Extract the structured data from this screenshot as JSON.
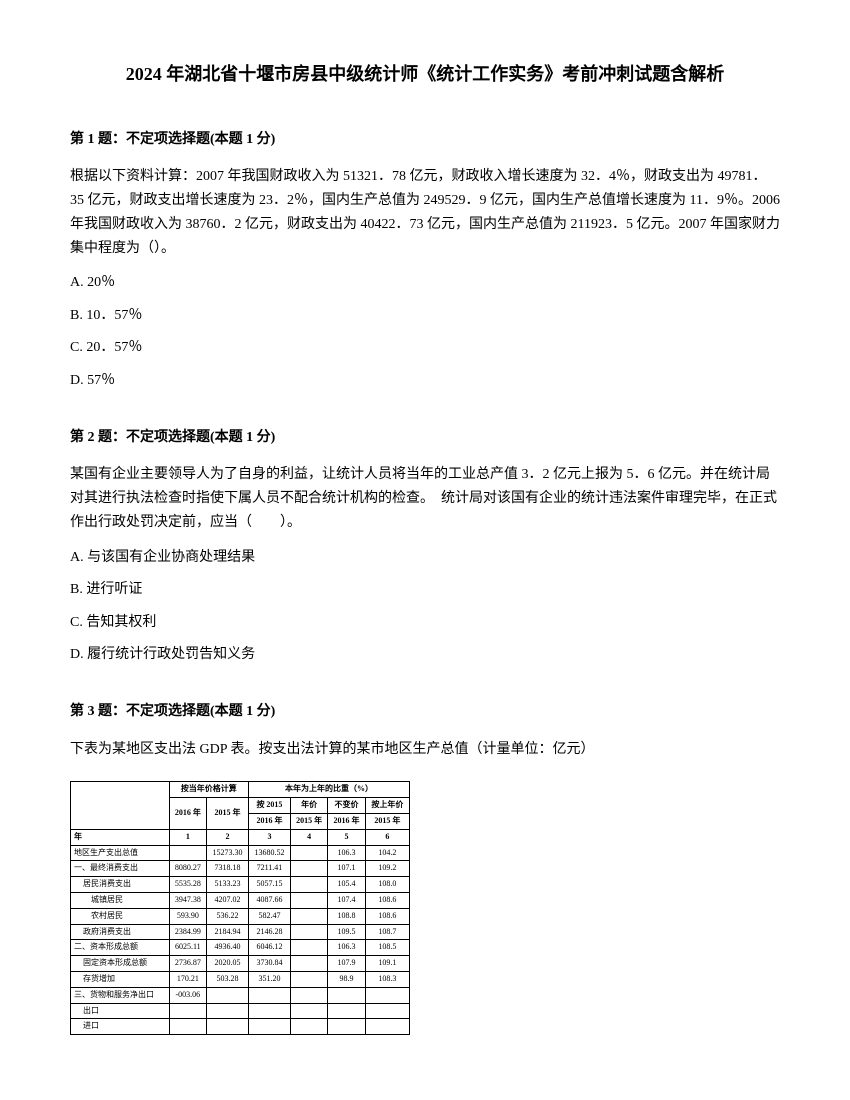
{
  "title": "2024 年湖北省十堰市房县中级统计师《统计工作实务》考前冲刺试题含解析",
  "q1": {
    "header": "第 1 题：不定项选择题(本题 1 分)",
    "body": "根据以下资料计算：2007 年我国财政收入为 51321．78 亿元，财政收入增长速度为 32．4％，财政支出为 49781．35 亿元，财政支出增长速度为 23．2％，国内生产总值为 249529．9 亿元，国内生产总值增长速度为 11．9％。2006 年我国财政收入为 38760．2 亿元，财政支出为 40422．73 亿元，国内生产总值为 211923．5 亿元。2007 年国家财力集中程度为（）。",
    "optA": "A. 20％",
    "optB": "B. 10．57％",
    "optC": "C. 20．57％",
    "optD": "D. 57％"
  },
  "q2": {
    "header": "第 2 题：不定项选择题(本题 1 分)",
    "body": "某国有企业主要领导人为了自身的利益，让统计人员将当年的工业总产值 3．2 亿元上报为 5．6 亿元。并在统计局对其进行执法检查时指使下属人员不配合统计机构的检查。　统计局对该国有企业的统计违法案件审理完毕，在正式作出行政处罚决定前，应当（　　）。",
    "optA": "A. 与该国有企业协商处理结果",
    "optB": "B. 进行听证",
    "optC": "C. 告知其权利",
    "optD": "D. 履行统计行政处罚告知义务"
  },
  "q3": {
    "header": "第 3 题：不定项选择题(本题 1 分)",
    "body": "下表为某地区支出法 GDP 表。按支出法计算的某市地区生产总值（计量单位：亿元）"
  },
  "table": {
    "h_group1": "按当年价格计算",
    "h_group2": "本年为上年的比重（%）",
    "h_2016": "2016 年",
    "h_2015": "2015 年",
    "h_sub1": "按 2015\\n2016 年",
    "h_sub2": "年价\\n2015 年",
    "h_sub3": "不变价格核算\\n2016 年",
    "h_sub4": "按上年价\\n2015 年",
    "h_year": "年",
    "h_c1": "1",
    "h_c2": "2",
    "h_c3": "3",
    "h_c4": "4",
    "h_c5": "5",
    "h_c6": "6",
    "r1_label": "地区生产支出总值",
    "r1": [
      "",
      "15273.30",
      "13680.52",
      "",
      "106.3",
      "104.2"
    ],
    "r2_label": "一、最终消费支出",
    "r2": [
      "8080.27",
      "7318.18",
      "7211.41",
      "",
      "107.1",
      "109.2"
    ],
    "r3_label": "居民消费支出",
    "r3": [
      "5535.28",
      "5133.23",
      "5057.15",
      "",
      "105.4",
      "108.0"
    ],
    "r4_label": "城镇居民",
    "r4": [
      "3947.38",
      "4207.02",
      "4087.66",
      "",
      "107.4",
      "108.6"
    ],
    "r5_label": "农村居民",
    "r5": [
      "593.90",
      "536.22",
      "582.47",
      "",
      "108.8",
      "108.6"
    ],
    "r6_label": "政府消费支出",
    "r6": [
      "2384.99",
      "2184.94",
      "2146.28",
      "",
      "109.5",
      "108.7"
    ],
    "r7_label": "二、资本形成总额",
    "r7": [
      "6025.11",
      "4936.40",
      "6046.12",
      "",
      "106.3",
      "108.5"
    ],
    "r8_label": "固定资本形成总额",
    "r8": [
      "2736.87",
      "2020.05",
      "3730.84",
      "",
      "107.9",
      "109.1"
    ],
    "r9_label": "存货增加",
    "r9": [
      "170.21",
      "503.28",
      "351.20",
      "",
      "98.9",
      "108.3"
    ],
    "r10_label": "三、货物和服务净出口",
    "r10": [
      "-003.06",
      "",
      "",
      "",
      "",
      ""
    ],
    "r11_label": "出口",
    "r12_label": "进口"
  }
}
